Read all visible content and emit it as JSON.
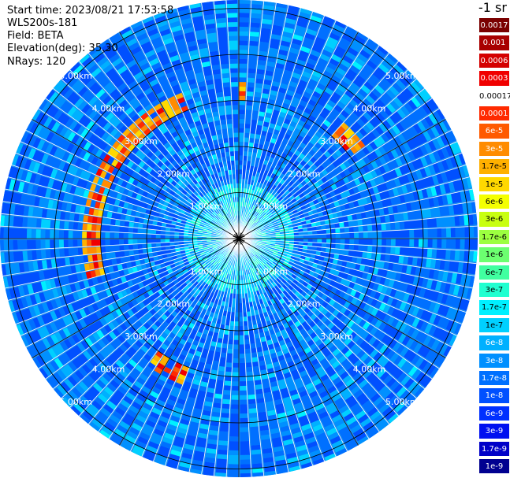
{
  "info": {
    "start_time": "Start time: 2023/08/21 17:53:58",
    "device": "WLS200s-181",
    "field": "Field: BETA",
    "elevation": "Elevation(deg): 35.30",
    "nrays": "NRays: 120"
  },
  "colorbar": {
    "unit": "-1 sr",
    "levels": [
      {
        "label": "0.0017",
        "color": "#7a0000"
      },
      {
        "label": "0.001",
        "color": "#a80000"
      },
      {
        "label": "0.0006",
        "color": "#d40000"
      },
      {
        "label": "0.0003",
        "color": "#f00000"
      },
      {
        "label": "0.00017",
        "color": "#ffffff"
      },
      {
        "label": "0.0001",
        "color": "#ff2a00"
      },
      {
        "label": "6e-5",
        "color": "#ff5a00"
      },
      {
        "label": "3e-5",
        "color": "#ff8c00"
      },
      {
        "label": "1.7e-5",
        "color": "#ffb000"
      },
      {
        "label": "1e-5",
        "color": "#ffd800"
      },
      {
        "label": "6e-6",
        "color": "#f4ff00"
      },
      {
        "label": "3e-6",
        "color": "#c8ff10"
      },
      {
        "label": "1.7e-6",
        "color": "#9cff40"
      },
      {
        "label": "1e-6",
        "color": "#6cff70"
      },
      {
        "label": "6e-7",
        "color": "#40ffa0"
      },
      {
        "label": "3e-7",
        "color": "#20ffd0"
      },
      {
        "label": "1.7e-7",
        "color": "#00f0ff"
      },
      {
        "label": "1e-7",
        "color": "#00d0ff"
      },
      {
        "label": "6e-8",
        "color": "#00b0ff"
      },
      {
        "label": "3e-8",
        "color": "#0090ff"
      },
      {
        "label": "1.7e-8",
        "color": "#0070ff"
      },
      {
        "label": "1e-8",
        "color": "#0050ff"
      },
      {
        "label": "6e-9",
        "color": "#0030ff"
      },
      {
        "label": "3e-9",
        "color": "#0010f0"
      },
      {
        "label": "1.7e-9",
        "color": "#0000c8"
      },
      {
        "label": "1e-9",
        "color": "#000090"
      }
    ]
  },
  "chart_data": {
    "type": "heatmap",
    "projection": "polar (PPI scan)",
    "field": "BETA",
    "elevation_deg": 35.3,
    "nrays": 120,
    "range_rings_km": [
      1,
      2,
      3,
      4,
      5
    ],
    "ring_labels": [
      "1.00km",
      "2.00km",
      "3.00km",
      "4.00km",
      "5.00km"
    ],
    "background_level": "1e-8 to 1e-7",
    "features": [
      {
        "description": "high backscatter arc",
        "range_km": [
          3.0,
          3.4
        ],
        "azimuth_deg": [
          255,
          340
        ],
        "level": "1e-5 to 0.0003"
      },
      {
        "description": "high backscatter arc",
        "range_km": [
          3.0,
          3.4
        ],
        "azimuth_deg": [
          42,
          55
        ],
        "level": "1e-5 to 0.0003"
      },
      {
        "description": "high backscatter arc",
        "range_km": [
          3.0,
          3.4
        ],
        "azimuth_deg": [
          200,
          215
        ],
        "level": "1e-5 to 0.0003"
      },
      {
        "description": "high backscatter patch",
        "range_km": [
          3.0,
          3.4
        ],
        "azimuth_deg": [
          0,
          3
        ],
        "level": "1e-5 to 0.0003"
      }
    ]
  }
}
